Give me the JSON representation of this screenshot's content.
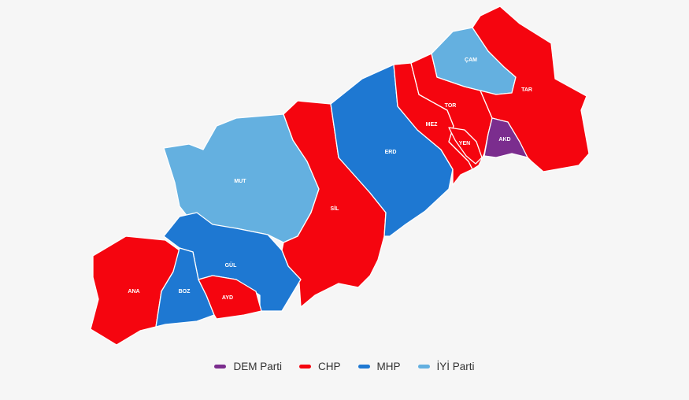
{
  "colors": {
    "DEM Parti": "#7b2d8e",
    "CHP": "#f5050f",
    "MHP": "#1e78d2",
    "İYİ Parti": "#64b0e0"
  },
  "districts": [
    {
      "code": "ANA",
      "party": "CHP"
    },
    {
      "code": "BOZ",
      "party": "MHP"
    },
    {
      "code": "AYD",
      "party": "CHP"
    },
    {
      "code": "GÜL",
      "party": "MHP"
    },
    {
      "code": "MUT",
      "party": "İYİ Parti"
    },
    {
      "code": "SİL",
      "party": "CHP"
    },
    {
      "code": "ERD",
      "party": "MHP"
    },
    {
      "code": "MEZ",
      "party": "CHP"
    },
    {
      "code": "TOR",
      "party": "CHP"
    },
    {
      "code": "YEN",
      "party": "CHP"
    },
    {
      "code": "AKD",
      "party": "DEM Parti"
    },
    {
      "code": "ÇAM",
      "party": "İYİ Parti"
    },
    {
      "code": "TAR",
      "party": "CHP"
    }
  ],
  "legend": [
    {
      "label": "DEM Parti",
      "color": "#7b2d8e"
    },
    {
      "label": "CHP",
      "color": "#f5050f"
    },
    {
      "label": "MHP",
      "color": "#1e78d2"
    },
    {
      "label": "İYİ Parti",
      "color": "#64b0e0"
    }
  ]
}
